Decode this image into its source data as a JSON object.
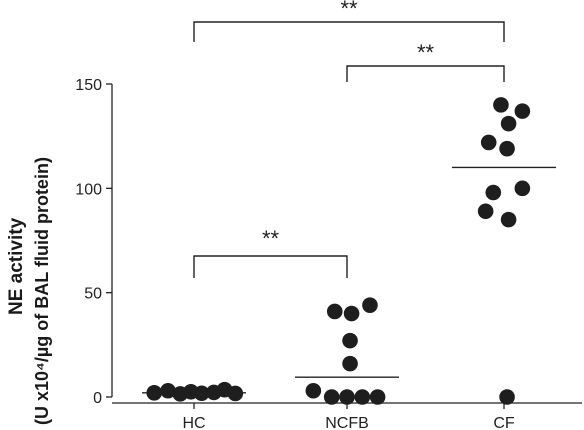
{
  "chart_data": {
    "type": "scatter",
    "categories": [
      "HC",
      "NCFB",
      "CF"
    ],
    "ylabel_line1": "NE activity",
    "ylabel_line2": "(U x10⁴/µg of BAL fluid protein)",
    "ylim": [
      0,
      150
    ],
    "yticks": [
      0,
      50,
      100,
      150
    ],
    "series": [
      {
        "category": "HC",
        "median": 2,
        "points": [
          [
            -0.26,
            2
          ],
          [
            -0.17,
            3
          ],
          [
            -0.09,
            1.5
          ],
          [
            -0.02,
            2.5
          ],
          [
            0.05,
            1.8
          ],
          [
            0.13,
            2.2
          ],
          [
            0.2,
            3.5
          ],
          [
            0.27,
            1.7
          ]
        ]
      },
      {
        "category": "NCFB",
        "median": 9.5,
        "points": [
          [
            -0.08,
            41
          ],
          [
            0.03,
            40
          ],
          [
            0.15,
            44
          ],
          [
            0.02,
            27
          ],
          [
            0.02,
            16
          ],
          [
            -0.22,
            3
          ],
          [
            -0.1,
            0
          ],
          [
            0.0,
            0
          ],
          [
            0.1,
            0
          ],
          [
            0.2,
            0
          ]
        ]
      },
      {
        "category": "CF",
        "median": 110,
        "points": [
          [
            -0.02,
            140
          ],
          [
            0.12,
            137
          ],
          [
            0.03,
            131
          ],
          [
            -0.1,
            122
          ],
          [
            0.02,
            119
          ],
          [
            -0.07,
            98
          ],
          [
            0.12,
            100
          ],
          [
            -0.12,
            89
          ],
          [
            0.03,
            85
          ],
          [
            0.02,
            0
          ]
        ]
      }
    ],
    "brackets": [
      {
        "from": "HC",
        "to": "CF",
        "label": "**"
      },
      {
        "from": "NCFB",
        "to": "CF",
        "label": "**"
      },
      {
        "from": "HC",
        "to": "NCFB",
        "label": "**"
      }
    ]
  }
}
